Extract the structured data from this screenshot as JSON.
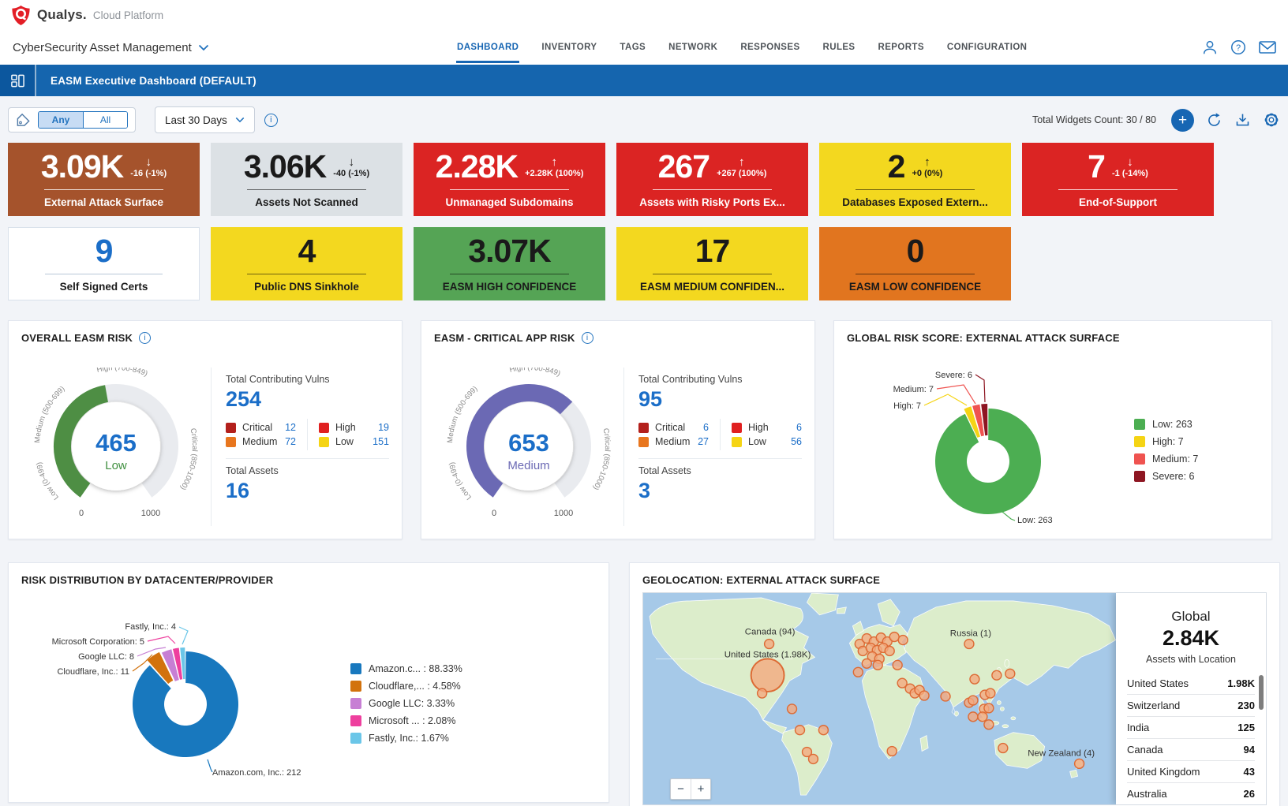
{
  "header": {
    "brand": "Qualys.",
    "brand_suffix": "Cloud Platform",
    "nav": [
      {
        "label": "DASHBOARD",
        "active": true
      },
      {
        "label": "INVENTORY",
        "active": false
      },
      {
        "label": "TAGS",
        "active": false
      },
      {
        "label": "NETWORK",
        "active": false
      },
      {
        "label": "RESPONSES",
        "active": false
      },
      {
        "label": "RULES",
        "active": false
      },
      {
        "label": "REPORTS",
        "active": false
      },
      {
        "label": "CONFIGURATION",
        "active": false
      }
    ]
  },
  "app_selector": {
    "label": "CyberSecurity Asset Management"
  },
  "dashboard_bar": {
    "title": "EASM Executive Dashboard (DEFAULT)"
  },
  "toolbar": {
    "tag_filter_options": [
      "Any",
      "All"
    ],
    "tag_filter_selected": "Any",
    "date_range": "Last 30 Days",
    "widgets_count": "Total Widgets Count: 30 / 80"
  },
  "kpi_row1": [
    {
      "value": "3.09K",
      "trend": "down",
      "delta": "-16 (-1%)",
      "label": "External Attack Surface",
      "bg": "#A5532C",
      "fg": "#FFFFFF"
    },
    {
      "value": "3.06K",
      "trend": "down",
      "delta": "-40 (-1%)",
      "label": "Assets Not Scanned",
      "bg": "#DCE1E5",
      "fg": "#1A1A1A"
    },
    {
      "value": "2.28K",
      "trend": "up",
      "delta": "+2.28K (100%)",
      "label": "Unmanaged Subdomains",
      "bg": "#DB2423",
      "fg": "#FFFFFF"
    },
    {
      "value": "267",
      "trend": "up",
      "delta": "+267 (100%)",
      "label": "Assets with Risky Ports Ex...",
      "bg": "#DB2423",
      "fg": "#FFFFFF"
    },
    {
      "value": "2",
      "trend": "up",
      "delta": "+0 (0%)",
      "label": "Databases Exposed Extern...",
      "bg": "#F3D81F",
      "fg": "#1A1A1A"
    },
    {
      "value": "7",
      "trend": "down",
      "delta": "-1 (-14%)",
      "label": "End-of-Support",
      "bg": "#DB2423",
      "fg": "#FFFFFF"
    }
  ],
  "kpi_row2": [
    {
      "value": "9",
      "label": "Self Signed Certs",
      "bg": "#FFFFFF",
      "fg": "#1B6EC8",
      "label_fg": "#1A1A1A",
      "border": true,
      "sep": "#B9C7D8"
    },
    {
      "value": "4",
      "label": "Public DNS Sinkhole",
      "bg": "#F3D81F",
      "fg": "#1A1A1A"
    },
    {
      "value": "3.07K",
      "label": "EASM HIGH CONFIDENCE",
      "bg": "#55A455",
      "fg": "#1A1A1A"
    },
    {
      "value": "17",
      "label": "EASM MEDIUM CONFIDEN...",
      "bg": "#F3D81F",
      "fg": "#1A1A1A"
    },
    {
      "value": "0",
      "label": "EASM LOW CONFIDENCE",
      "bg": "#E1751F",
      "fg": "#1A1A1A"
    }
  ],
  "widgets": {
    "overall_easm_risk": {
      "title": "OVERALL EASM RISK",
      "gauge": {
        "value": 465,
        "max": 1000,
        "status": "Low",
        "status_color": "#3F8F3F",
        "arc_color": "#4E8E44",
        "scale_labels": [
          "Low (0-499)",
          "Medium (500-699)",
          "High (700-849)",
          "Critical (850-1000)"
        ],
        "min_label": "0",
        "max_label": "1000"
      },
      "vulns_label": "Total Contributing Vulns",
      "vulns_total": "254",
      "severities": [
        {
          "name": "Critical",
          "count": "12",
          "color": "#B3201C"
        },
        {
          "name": "Medium",
          "count": "72",
          "color": "#E8761E"
        },
        {
          "name": "High",
          "count": "19",
          "color": "#E02020"
        },
        {
          "name": "Low",
          "count": "151",
          "color": "#F5D414"
        }
      ],
      "assets_label": "Total Assets",
      "assets_total": "16"
    },
    "critical_app_risk": {
      "title": "EASM - CRITICAL APP RISK",
      "gauge": {
        "value": 653,
        "max": 1000,
        "status": "Medium",
        "status_color": "#6B69B4",
        "arc_color": "#6B69B4",
        "scale_labels": [
          "Low (0-499)",
          "Medium (500-699)",
          "High (700-849)",
          "Critical (850-1000)"
        ],
        "min_label": "0",
        "max_label": "1000"
      },
      "vulns_label": "Total Contributing Vulns",
      "vulns_total": "95",
      "severities": [
        {
          "name": "Critical",
          "count": "6",
          "color": "#B3201C"
        },
        {
          "name": "Medium",
          "count": "27",
          "color": "#E8761E"
        },
        {
          "name": "High",
          "count": "6",
          "color": "#E02020"
        },
        {
          "name": "Low",
          "count": "56",
          "color": "#F5D414"
        }
      ],
      "assets_label": "Total Assets",
      "assets_total": "3"
    },
    "global_risk_score": {
      "title": "GLOBAL RISK SCORE: EXTERNAL ATTACK SURFACE",
      "chart": {
        "type": "donut",
        "segments": [
          {
            "name": "Low",
            "value": 263,
            "color": "#4CAE52"
          },
          {
            "name": "High",
            "value": 7,
            "color": "#F5D414"
          },
          {
            "name": "Medium",
            "value": 7,
            "color": "#EF5350"
          },
          {
            "name": "Severe",
            "value": 6,
            "color": "#8E1622"
          }
        ]
      }
    },
    "risk_distribution": {
      "title": "RISK DISTRIBUTION BY DATACENTER/PROVIDER",
      "chart": {
        "type": "donut",
        "segments": [
          {
            "name": "Amazon.com, Inc.",
            "value": 212,
            "pct": "88.33%",
            "color": "#1878BE",
            "legend": "Amazon.c... : 88.33%",
            "callout": "Amazon.com, Inc.: 212"
          },
          {
            "name": "Cloudflare, Inc.",
            "value": 11,
            "pct": "4.58%",
            "color": "#D2720D",
            "legend": "Cloudflare,... : 4.58%",
            "callout": "Cloudflare, Inc.: 11"
          },
          {
            "name": "Google LLC",
            "value": 8,
            "pct": "3.33%",
            "color": "#C77FD4",
            "legend": "Google LLC: 3.33%",
            "callout": "Google LLC: 8"
          },
          {
            "name": "Microsoft Corporation",
            "value": 5,
            "pct": "2.08%",
            "color": "#EE3F9E",
            "legend": "Microsoft ... : 2.08%",
            "callout": "Microsoft Corporation: 5"
          },
          {
            "name": "Fastly, Inc.",
            "value": 4,
            "pct": "1.67%",
            "color": "#6BC6E8",
            "legend": "Fastly, Inc.: 1.67%",
            "callout": "Fastly, Inc.: 4"
          }
        ]
      }
    },
    "geolocation": {
      "title": "GEOLOCATION: EXTERNAL ATTACK SURFACE",
      "map_labels": [
        "Canada (94)",
        "United States (1.98K)",
        "Russia (1)",
        "New Zealand (4)"
      ],
      "zoom_out": "−",
      "zoom_in": "+",
      "panel": {
        "scope": "Global",
        "total": "2.84K",
        "subtitle": "Assets with Location",
        "rows": [
          {
            "country": "United States",
            "value": "1.98K"
          },
          {
            "country": "Switzerland",
            "value": "230"
          },
          {
            "country": "India",
            "value": "125"
          },
          {
            "country": "Canada",
            "value": "94"
          },
          {
            "country": "United Kingdom",
            "value": "43"
          },
          {
            "country": "Australia",
            "value": "26"
          }
        ]
      }
    }
  }
}
